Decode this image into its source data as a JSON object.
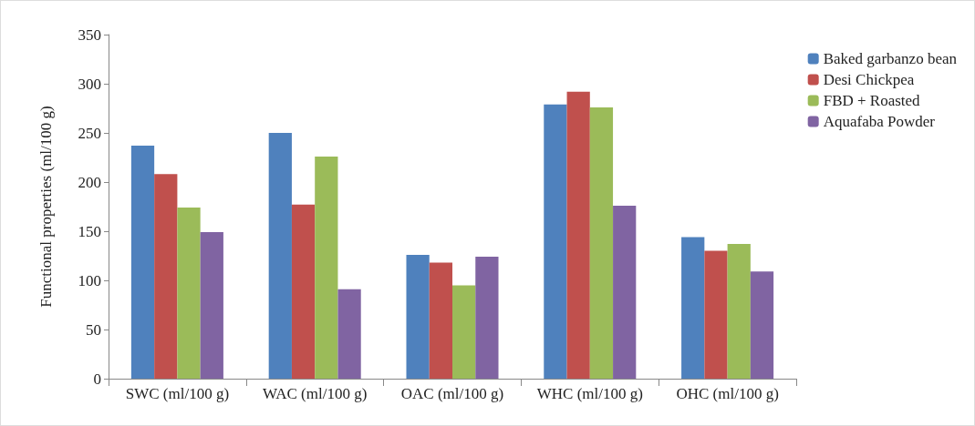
{
  "chart_data": {
    "type": "bar",
    "ylabel": "Functional properties (ml/100 g)",
    "categories": [
      "SWC (ml/100 g)",
      "WAC (ml/100 g)",
      "OAC (ml/100 g)",
      "WHC (ml/100 g)",
      "OHC (ml/100 g)"
    ],
    "series": [
      {
        "name": "Baked garbanzo bean",
        "color": "#4f81bd",
        "values": [
          237,
          250,
          126,
          279,
          144
        ]
      },
      {
        "name": "Desi Chickpea",
        "color": "#c0504d",
        "values": [
          208,
          177,
          118,
          292,
          130
        ]
      },
      {
        "name": "FBD + Roasted",
        "color": "#9bbb59",
        "values": [
          174,
          226,
          95,
          276,
          137
        ]
      },
      {
        "name": "Aquafaba Powder",
        "color": "#8064a2",
        "values": [
          149,
          91,
          124,
          176,
          109
        ]
      }
    ],
    "ylim": [
      0,
      350
    ],
    "yticks": [
      0,
      50,
      100,
      150,
      200,
      250,
      300,
      350
    ],
    "grid": false,
    "legend": "top right"
  }
}
